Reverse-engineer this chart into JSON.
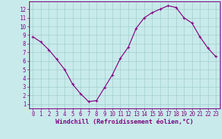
{
  "x": [
    0,
    1,
    2,
    3,
    4,
    5,
    6,
    7,
    8,
    9,
    10,
    11,
    12,
    13,
    14,
    15,
    16,
    17,
    18,
    19,
    20,
    21,
    22,
    23
  ],
  "y": [
    8.8,
    8.2,
    7.3,
    6.2,
    5.0,
    3.3,
    2.2,
    1.3,
    1.4,
    2.9,
    4.4,
    6.3,
    7.6,
    9.8,
    11.0,
    11.6,
    12.0,
    12.4,
    12.2,
    11.0,
    10.4,
    8.8,
    7.5,
    6.5
  ],
  "line_color": "#800080",
  "marker": "+",
  "marker_size": 3.5,
  "line_width": 0.9,
  "background_color": "#c8eaea",
  "grid_color": "#a0cccc",
  "xlabel": "Windchill (Refroidissement éolien,°C)",
  "xlabel_color": "#800080",
  "xlim": [
    -0.5,
    23.5
  ],
  "ylim": [
    0.5,
    12.9
  ],
  "xticks": [
    0,
    1,
    2,
    3,
    4,
    5,
    6,
    7,
    8,
    9,
    10,
    11,
    12,
    13,
    14,
    15,
    16,
    17,
    18,
    19,
    20,
    21,
    22,
    23
  ],
  "yticks": [
    1,
    2,
    3,
    4,
    5,
    6,
    7,
    8,
    9,
    10,
    11,
    12
  ],
  "tick_color": "#800080",
  "tick_fontsize": 5.5,
  "xlabel_fontsize": 6.5,
  "border_color": "#800080",
  "spine_linewidth": 0.8
}
